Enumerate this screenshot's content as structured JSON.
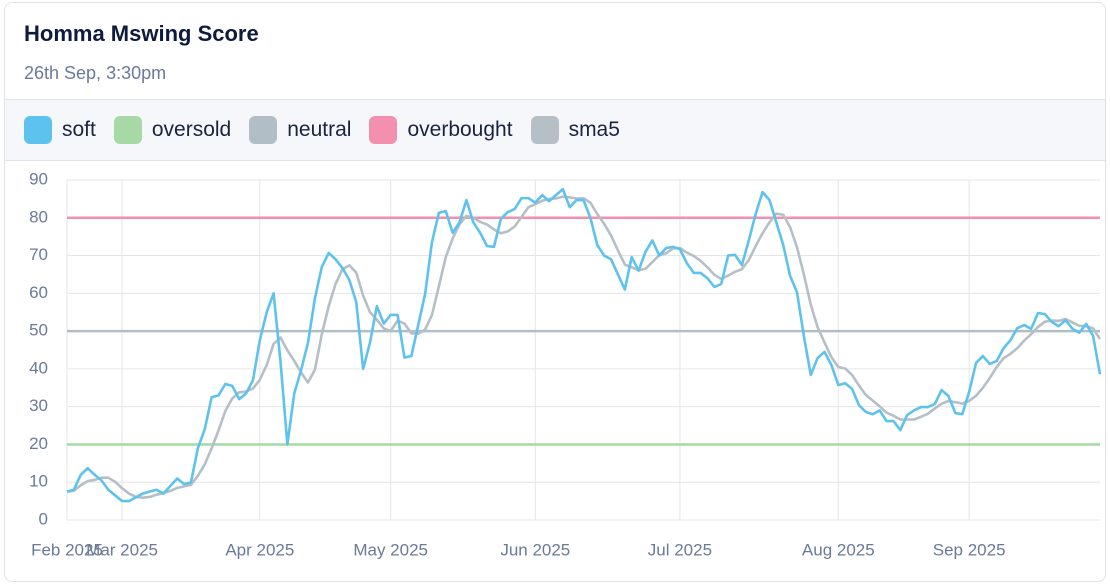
{
  "chart_data": {
    "type": "line",
    "title": "Homma Mswing Score",
    "subtitle": "26th Sep, 3:30pm",
    "categories": [
      "Feb 2025",
      null,
      null,
      null,
      null,
      null,
      null,
      null,
      "Mar 2025",
      null,
      null,
      null,
      null,
      null,
      null,
      null,
      null,
      null,
      null,
      null,
      null,
      null,
      null,
      null,
      null,
      null,
      null,
      null,
      "Apr 2025",
      null,
      null,
      null,
      null,
      null,
      null,
      null,
      null,
      null,
      null,
      null,
      null,
      null,
      null,
      null,
      null,
      null,
      null,
      "May 2025",
      null,
      null,
      null,
      null,
      null,
      null,
      null,
      null,
      null,
      null,
      null,
      null,
      null,
      null,
      null,
      null,
      null,
      null,
      null,
      null,
      "Jun 2025",
      null,
      null,
      null,
      null,
      null,
      null,
      null,
      null,
      null,
      null,
      null,
      null,
      null,
      null,
      null,
      null,
      null,
      null,
      null,
      null,
      "Jul 2025",
      null,
      null,
      null,
      null,
      null,
      null,
      null,
      null,
      null,
      null,
      null,
      null,
      null,
      null,
      null,
      null,
      null,
      null,
      null,
      null,
      null,
      null,
      "Aug 2025",
      null,
      null,
      null,
      null,
      null,
      null,
      null,
      null,
      null,
      null,
      null,
      null,
      null,
      null,
      null,
      null,
      null,
      null,
      "Sep 2025",
      null,
      null,
      null,
      null,
      null,
      null,
      null,
      null,
      null,
      null,
      null,
      null,
      null,
      null,
      null,
      null,
      null,
      null,
      null
    ],
    "series": [
      {
        "name": "soft",
        "color": "#5ec2ee",
        "values": [
          7.5,
          8,
          12,
          13.7,
          12,
          10.5,
          8,
          6.5,
          5,
          5,
          6,
          7,
          7.5,
          8,
          7,
          9,
          11,
          9.5,
          10,
          19,
          24,
          32.5,
          33,
          36,
          35.5,
          32,
          33.5,
          37,
          47.6,
          55,
          60,
          42,
          20,
          33.5,
          39.7,
          47,
          58.7,
          67,
          70.7,
          69,
          66.7,
          63.5,
          57.7,
          40,
          47,
          56.6,
          52,
          54.3,
          54.3,
          43,
          43.4,
          51.6,
          59.8,
          73.6,
          81.3,
          81.8,
          76,
          78.8,
          84.7,
          78.8,
          76,
          72.5,
          72.3,
          79.7,
          81.5,
          82.3,
          85.2,
          85.2,
          84,
          86,
          84.4,
          86,
          87.6,
          82.8,
          84.7,
          84.7,
          80,
          72.8,
          70,
          69,
          65,
          61,
          69.6,
          66,
          71,
          74,
          70,
          72,
          72.3,
          71.7,
          68,
          65.4,
          65.4,
          64,
          61.7,
          62.5,
          70,
          70.2,
          67.5,
          74,
          81,
          86.8,
          84.7,
          78.8,
          72.8,
          64.6,
          60.3,
          48.7,
          38.4,
          42.9,
          44.5,
          41,
          35.7,
          36.2,
          34.7,
          30.4,
          28.6,
          28,
          29,
          26.2,
          26.2,
          23.8,
          27.8,
          29,
          29.9,
          29.9,
          30.7,
          34.4,
          32.8,
          28.3,
          28,
          33.9,
          41.6,
          43.4,
          41.3,
          42.1,
          45.5,
          47.6,
          50.8,
          51.6,
          50.6,
          54.8,
          54.5,
          52.4,
          51.3,
          52.9,
          50.6,
          49.6,
          51.9,
          48.7,
          38.6
        ]
      },
      {
        "name": "oversold",
        "color": "#a6d9a6",
        "value": 20
      },
      {
        "name": "neutral",
        "color": "#b2bec6",
        "value": 50
      },
      {
        "name": "overbought",
        "color": "#f390b0",
        "value": 80
      },
      {
        "name": "sma5",
        "color": "#b6bfc6",
        "values": [
          7.5,
          7.75,
          9.2,
          10.3,
          10.6,
          11.2,
          11.2,
          10.1,
          8.4,
          7,
          6.1,
          5.9,
          6.1,
          6.7,
          7.1,
          7.7,
          8.5,
          8.9,
          9.3,
          11.7,
          14.7,
          19,
          23.7,
          28.9,
          32.2,
          33.8,
          34,
          34.8,
          37.1,
          41,
          46.6,
          48.3,
          44.9,
          42.1,
          39,
          36.4,
          39.8,
          49.2,
          56.6,
          62.5,
          66.4,
          67.4,
          65.5,
          59.4,
          55,
          53,
          50.7,
          50,
          52.8,
          52,
          49.4,
          49.3,
          50.4,
          54.3,
          61.9,
          69.6,
          74.5,
          78.3,
          80.5,
          80,
          78.9,
          78.2,
          76.9,
          75.9,
          76.4,
          77.7,
          80.2,
          82.8,
          83.6,
          84.5,
          85,
          85.1,
          85.6,
          85.4,
          85.1,
          85.2,
          84,
          81,
          78.4,
          75.3,
          71.4,
          67.6,
          66.9,
          66.1,
          66.5,
          68.3,
          70.1,
          70.6,
          71.9,
          72,
          70.8,
          69.9,
          68.6,
          66.9,
          64.9,
          63.8,
          64.7,
          65.7,
          66.4,
          68.8,
          72.5,
          75.9,
          78.8,
          81.1,
          80.8,
          77.5,
          72.2,
          65,
          57,
          51,
          47,
          43.1,
          40.5,
          40.1,
          38.4,
          35.6,
          33.1,
          31.6,
          30.1,
          28.4,
          27.6,
          26.6,
          26.6,
          26.6,
          27.3,
          28.1,
          29.5,
          30.8,
          31.5,
          31.2,
          30.8,
          31.5,
          32.9,
          35,
          37.6,
          40.5,
          42.8,
          44,
          45.5,
          47.5,
          49.2,
          51.1,
          52.5,
          52.8,
          52.7,
          53.2,
          52.3,
          51.4,
          51.3,
          50.7,
          47.9
        ]
      }
    ],
    "ylim": [
      0,
      90
    ],
    "yticks": [
      0,
      10,
      20,
      30,
      40,
      50,
      60,
      70,
      80,
      90
    ],
    "grid": true
  }
}
